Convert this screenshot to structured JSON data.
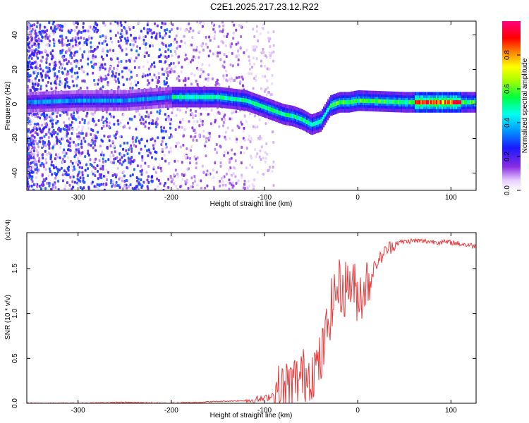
{
  "title": "C2E1.2025.217.23.12.R22",
  "chart_data": [
    {
      "type": "heatmap",
      "xlabel": "Height of straight line (km)",
      "ylabel": "Frequency (Hz)",
      "xlim": [
        -355,
        127
      ],
      "ylim": [
        -50,
        48
      ],
      "xticks": [
        -300,
        -200,
        -100,
        0,
        100
      ],
      "yticks": [
        -40,
        -20,
        0,
        20,
        40
      ],
      "grid": false,
      "colorbar": {
        "label": "Normalized spectral amplitude",
        "range": [
          0.0,
          1.0
        ],
        "ticks": [
          0.0,
          0.2,
          0.4,
          0.6,
          0.8
        ],
        "tick_labels": [
          "0.0",
          "0.2",
          "0.4",
          "0.6",
          "0.8"
        ],
        "colormap": "rainbow (white-violet-blue-cyan-green-yellow-red-magenta)"
      },
      "ridge": {
        "description": "Main spectral ridge (frequency vs height)",
        "x": [
          -355,
          -300,
          -250,
          -200,
          -150,
          -120,
          -100,
          -90,
          -80,
          -70,
          -60,
          -50,
          -40,
          -30,
          -20,
          -10,
          0,
          50,
          100,
          127
        ],
        "y": [
          1,
          2,
          2,
          4,
          4,
          2,
          -2,
          -4,
          -6,
          -7,
          -9,
          -12,
          -10,
          -1,
          1,
          1,
          2,
          1,
          1,
          1
        ]
      }
    },
    {
      "type": "line",
      "xlabel": "Height of straight line (km)",
      "ylabel": "SNR (10 * v/v)",
      "y_multiplier": "(x10^4)",
      "xlim": [
        -355,
        127
      ],
      "ylim": [
        0,
        1.9
      ],
      "xticks": [
        -300,
        -200,
        -100,
        0,
        100
      ],
      "yticks": [
        0.0,
        0.5,
        1.0,
        1.5
      ],
      "ytick_labels": [
        "0.0",
        "0.5",
        "1.0",
        "1.5"
      ],
      "grid": false,
      "series": [
        {
          "color": "#e8393a",
          "x": [
            -355,
            -300,
            -250,
            -200,
            -150,
            -120,
            -100,
            -90,
            -80,
            -70,
            -60,
            -50,
            -40,
            -35,
            -30,
            -25,
            -20,
            -15,
            -10,
            -5,
            0,
            5,
            10,
            20,
            30,
            40,
            50,
            60,
            80,
            100,
            127
          ],
          "y": [
            0.0,
            0.0,
            0.01,
            0.0,
            0.02,
            0.03,
            0.05,
            0.1,
            0.15,
            0.22,
            0.3,
            0.35,
            0.45,
            0.7,
            1.0,
            1.2,
            1.3,
            1.25,
            1.35,
            1.3,
            1.2,
            1.25,
            1.35,
            1.55,
            1.7,
            1.78,
            1.8,
            1.81,
            1.8,
            1.79,
            1.75
          ]
        }
      ]
    }
  ]
}
